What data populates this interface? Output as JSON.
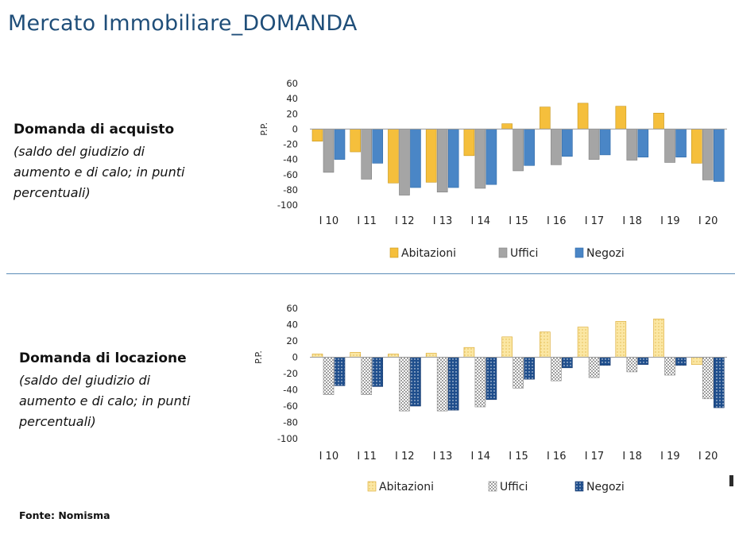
{
  "page_title": "Mercato Immobiliare_DOMANDA",
  "source": "Fonte: Nomisma",
  "colors": {
    "title": "#1f4e79",
    "divider": "#5b8db8",
    "abitazioni": "#f5bf3c",
    "uffici": "#a5a5a5",
    "negozi": "#4a86c6",
    "abitazioni_light": "#fbe7a4",
    "uffici_light": "#d9d9d9",
    "negozi_dark": "#1f4e8c"
  },
  "panels": [
    {
      "title": "Domanda di acquisto",
      "subtitle": "(saldo del giudizio di\naumento e di calo; in punti\npercentuali)"
    },
    {
      "title": "Domanda di locazione",
      "subtitle": "(saldo del giudizio di\naumento e di calo; in punti\npercentuali)"
    }
  ],
  "chart_data": [
    {
      "type": "bar",
      "title": "Domanda di acquisto",
      "ylabel": "P.P.",
      "xlabel": "",
      "ylim": [
        -100,
        60
      ],
      "yticks": [
        "60",
        "40",
        "20",
        "0",
        "-20",
        "-40",
        "-60",
        "-80",
        "-100"
      ],
      "categories": [
        "I 10",
        "I 11",
        "I 12",
        "I 13",
        "I 14",
        "I 15",
        "I 16",
        "I 17",
        "I 18",
        "I 19",
        "I 20"
      ],
      "series": [
        {
          "name": "Abitazioni",
          "values": [
            -16,
            -30,
            -71,
            -70,
            -35,
            7,
            29,
            34,
            30,
            21,
            -45
          ]
        },
        {
          "name": "Uffici",
          "values": [
            -57,
            -66,
            -87,
            -83,
            -78,
            -55,
            -47,
            -40,
            -41,
            -44,
            -67
          ]
        },
        {
          "name": "Negozi",
          "values": [
            -40,
            -45,
            -77,
            -77,
            -73,
            -48,
            -36,
            -34,
            -37,
            -37,
            -69
          ]
        }
      ],
      "legend": "bottom",
      "grid": false
    },
    {
      "type": "bar",
      "title": "Domanda di locazione",
      "ylabel": "P.P.",
      "xlabel": "",
      "ylim": [
        -100,
        60
      ],
      "yticks": [
        "60",
        "40",
        "20",
        "0",
        "-20",
        "-40",
        "-60",
        "-80",
        "-100"
      ],
      "categories": [
        "I 10",
        "I 11",
        "I 12",
        "I 13",
        "I 14",
        "I 15",
        "I 16",
        "I 17",
        "I 18",
        "I 19",
        "I 20"
      ],
      "series": [
        {
          "name": "Abitazioni",
          "values": [
            4,
            6,
            4,
            5,
            12,
            25,
            31,
            37,
            44,
            47,
            -9
          ]
        },
        {
          "name": "Uffici",
          "values": [
            -46,
            -46,
            -66,
            -66,
            -61,
            -38,
            -29,
            -25,
            -18,
            -22,
            -51
          ]
        },
        {
          "name": "Negozi",
          "values": [
            -35,
            -36,
            -60,
            -65,
            -52,
            -27,
            -13,
            -10,
            -9,
            -10,
            -62
          ]
        }
      ],
      "legend": "bottom",
      "grid": false
    }
  ]
}
